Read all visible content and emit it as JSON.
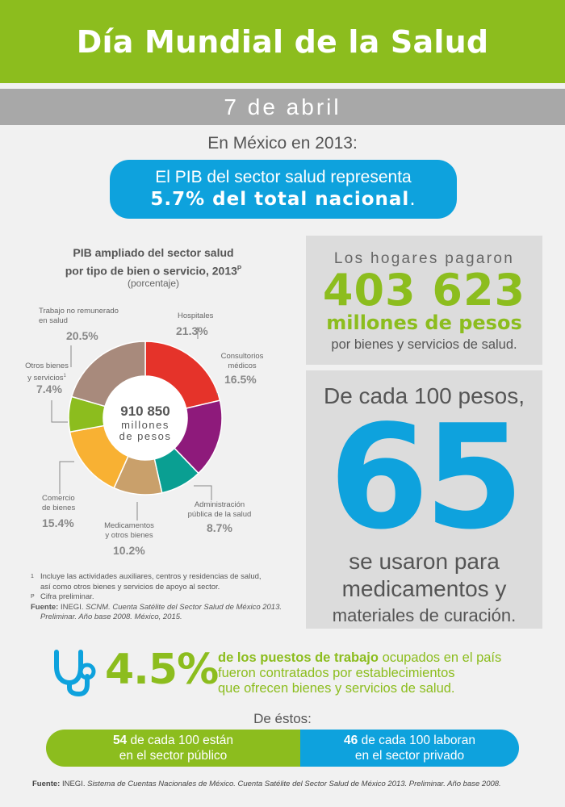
{
  "header": {
    "title": "Día Mundial de la Salud",
    "date": "7 de abril"
  },
  "intro": {
    "context": "En México en 2013:",
    "pib_line1": "El PIB del sector salud representa",
    "pib_line2_strong": "5.7% del total nacional",
    "pib_line2_end": "."
  },
  "chart": {
    "title_line1": "PIB ampliado del sector salud",
    "title_line2": "por tipo de bien o servicio, 2013",
    "title_sup": "P",
    "subtitle": "(porcentaje)",
    "center_value": "910 850",
    "center_line2": "millones",
    "center_line3": "de pesos",
    "labels": {
      "hospitales": "Hospitales",
      "consultorios_1": "Consultorios",
      "consultorios_2": "médicos",
      "admin_1": "Administración",
      "admin_2": "pública de la salud",
      "medicamentos_1": "Medicamentos",
      "medicamentos_2": "y otros bienes",
      "comercio_1": "Comercio",
      "comercio_2": "de bienes",
      "otros_1": "Otros bienes",
      "otros_2": "y servicios",
      "otros_sup": "1",
      "trabajo_1": "Trabajo no remunerado",
      "trabajo_2": "en salud"
    },
    "pct_labels": {
      "hospitales": "21.3%",
      "consultorios": "16.5%",
      "admin": "8.7%",
      "medicamentos": "10.2%",
      "comercio": "15.4%",
      "otros": "7.4%",
      "trabajo": "20.5%"
    }
  },
  "chart_data": {
    "type": "pie",
    "title": "PIB ampliado del sector salud por tipo de bien o servicio, 2013",
    "unit": "porcentaje",
    "categories": [
      "Hospitales",
      "Consultorios médicos",
      "Administración pública de la salud",
      "Medicamentos y otros bienes",
      "Comercio de bienes",
      "Otros bienes y servicios",
      "Trabajo no remunerado en salud"
    ],
    "values": [
      21.3,
      16.5,
      8.7,
      10.2,
      15.4,
      7.4,
      20.5
    ],
    "colors": [
      "#e5332a",
      "#8e1a7b",
      "#0a9f92",
      "#c9a06b",
      "#f8b133",
      "#8cbd1e",
      "#a88a7c"
    ]
  },
  "footnotes": {
    "n1_sup": "1",
    "n1_text_a": "Incluye las actividades auxiliares, centros y residencias de salud,",
    "n1_text_b": "así como otros bienes y servicios de apoyo al sector.",
    "np_sup": "P",
    "np_text": "Cifra preliminar.",
    "source_label": "Fuente:",
    "source_text_a": "INEGI.",
    "source_text_b": "SCNM. Cuenta Satélite del Sector Salud de México 2013.",
    "source_text_c": "Preliminar. Año base 2008. México, 2015."
  },
  "hogares": {
    "line1": "Los hogares pagaron",
    "amount": "403 623",
    "unit": "millones de pesos",
    "line4": "por bienes y servicios de salud."
  },
  "de_cada": {
    "line1": "De cada 100 pesos,",
    "number": "65",
    "line3": "se usaron para",
    "line4": "medicamentos y",
    "line5": "materiales de curación."
  },
  "empleo": {
    "pct": "4.5%",
    "text_strong": "de los puestos de trabajo",
    "text_a": "ocupados en el país",
    "text_b": "fueron contratados por establecimientos",
    "text_c": "que ofrecen bienes y servicios de salud."
  },
  "distribucion": {
    "heading": "De éstos:",
    "publico_num": "54",
    "publico_a": "de cada 100 están",
    "publico_b": "en el sector público",
    "privado_num": "46",
    "privado_a": "de cada 100 laboran",
    "privado_b": "en el sector privado"
  },
  "source_bottom": {
    "label": "Fuente:",
    "org": "INEGI.",
    "text": "Sistema de Cuentas Nacionales de México. Cuenta Satélite del Sector Salud de México 2013. Preliminar. Año base 2008."
  }
}
